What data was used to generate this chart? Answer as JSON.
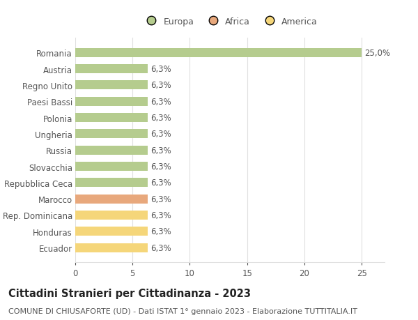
{
  "title": "Cittadini Stranieri per Cittadinanza - 2023",
  "subtitle": "COMUNE DI CHIUSAFORTE (UD) - Dati ISTAT 1° gennaio 2023 - Elaborazione TUTTITALIA.IT",
  "categories": [
    "Romania",
    "Austria",
    "Regno Unito",
    "Paesi Bassi",
    "Polonia",
    "Ungheria",
    "Russia",
    "Slovacchia",
    "Repubblica Ceca",
    "Marocco",
    "Rep. Dominicana",
    "Honduras",
    "Ecuador"
  ],
  "values": [
    25.0,
    6.3,
    6.3,
    6.3,
    6.3,
    6.3,
    6.3,
    6.3,
    6.3,
    6.3,
    6.3,
    6.3,
    6.3
  ],
  "labels": [
    "25,0%",
    "6,3%",
    "6,3%",
    "6,3%",
    "6,3%",
    "6,3%",
    "6,3%",
    "6,3%",
    "6,3%",
    "6,3%",
    "6,3%",
    "6,3%",
    "6,3%"
  ],
  "colors": [
    "#b5cc8e",
    "#b5cc8e",
    "#b5cc8e",
    "#b5cc8e",
    "#b5cc8e",
    "#b5cc8e",
    "#b5cc8e",
    "#b5cc8e",
    "#b5cc8e",
    "#e8a87c",
    "#f5d67a",
    "#f5d67a",
    "#f5d67a"
  ],
  "legend": [
    {
      "label": "Europa",
      "color": "#b5cc8e"
    },
    {
      "label": "Africa",
      "color": "#e8a87c"
    },
    {
      "label": "America",
      "color": "#f5d67a"
    }
  ],
  "xlim": [
    0,
    27
  ],
  "xticks": [
    0,
    5,
    10,
    15,
    20,
    25
  ],
  "background_color": "#ffffff",
  "grid_color": "#e0e0e0",
  "bar_height": 0.55,
  "label_fontsize": 8.5,
  "title_fontsize": 10.5,
  "subtitle_fontsize": 8,
  "tick_fontsize": 8.5,
  "legend_fontsize": 9,
  "text_color": "#555555",
  "title_color": "#222222"
}
